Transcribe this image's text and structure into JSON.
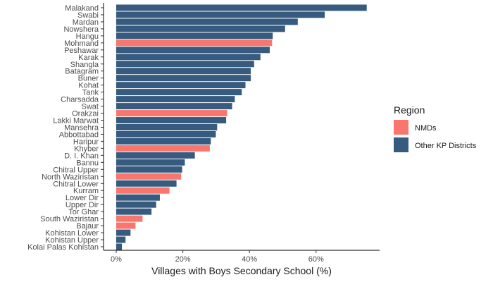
{
  "chart_data": {
    "type": "bar",
    "orientation": "horizontal",
    "xlabel": "Villages with Boys Secondary School (%)",
    "ylabel": "",
    "xlim": [
      0,
      78
    ],
    "xticks": [
      0,
      20,
      40,
      60
    ],
    "xtick_labels": [
      "0%",
      "20%",
      "40%",
      "60%"
    ],
    "grid": false,
    "legend": {
      "title": "Region",
      "placement": "right",
      "entries": [
        {
          "name": "NMDs",
          "color": "#F8766D"
        },
        {
          "name": "Other KP Districts",
          "color": "#375A7F"
        }
      ]
    },
    "bars": [
      {
        "category": "Malakand",
        "value": 75.2,
        "group": "Other KP Districts"
      },
      {
        "category": "Swabi",
        "value": 62.6,
        "group": "Other KP Districts"
      },
      {
        "category": "Mardan",
        "value": 54.5,
        "group": "Other KP Districts"
      },
      {
        "category": "Nowshera",
        "value": 50.7,
        "group": "Other KP Districts"
      },
      {
        "category": "Hangu",
        "value": 47.0,
        "group": "Other KP Districts"
      },
      {
        "category": "Mohmand",
        "value": 46.8,
        "group": "NMDs"
      },
      {
        "category": "Peshawar",
        "value": 46.1,
        "group": "Other KP Districts"
      },
      {
        "category": "Karak",
        "value": 43.3,
        "group": "Other KP Districts"
      },
      {
        "category": "Shangla",
        "value": 41.4,
        "group": "Other KP Districts"
      },
      {
        "category": "Batagram",
        "value": 40.4,
        "group": "Other KP Districts"
      },
      {
        "category": "Buner",
        "value": 40.4,
        "group": "Other KP Districts"
      },
      {
        "category": "Kohat",
        "value": 38.8,
        "group": "Other KP Districts"
      },
      {
        "category": "Tank",
        "value": 37.7,
        "group": "Other KP Districts"
      },
      {
        "category": "Charsadda",
        "value": 35.6,
        "group": "Other KP Districts"
      },
      {
        "category": "Swat",
        "value": 34.8,
        "group": "Other KP Districts"
      },
      {
        "category": "Orakzai",
        "value": 33.3,
        "group": "NMDs"
      },
      {
        "category": "Lakki Marwat",
        "value": 33.0,
        "group": "Other KP Districts"
      },
      {
        "category": "Mansehra",
        "value": 30.3,
        "group": "Other KP Districts"
      },
      {
        "category": "Abbottabad",
        "value": 29.9,
        "group": "Other KP Districts"
      },
      {
        "category": "Haripur",
        "value": 28.4,
        "group": "Other KP Districts"
      },
      {
        "category": "Khyber",
        "value": 28.1,
        "group": "NMDs"
      },
      {
        "category": "D. I. Khan",
        "value": 23.6,
        "group": "Other KP Districts"
      },
      {
        "category": "Bannu",
        "value": 20.6,
        "group": "Other KP Districts"
      },
      {
        "category": "Chitral Upper",
        "value": 19.8,
        "group": "Other KP Districts"
      },
      {
        "category": "North Waziristan",
        "value": 19.5,
        "group": "NMDs"
      },
      {
        "category": "Chitral Lower",
        "value": 18.1,
        "group": "Other KP Districts"
      },
      {
        "category": "Kurram",
        "value": 16.0,
        "group": "NMDs"
      },
      {
        "category": "Lower Dir",
        "value": 13.1,
        "group": "Other KP Districts"
      },
      {
        "category": "Upper Dir",
        "value": 12.0,
        "group": "Other KP Districts"
      },
      {
        "category": "Tor Ghar",
        "value": 10.6,
        "group": "Other KP Districts"
      },
      {
        "category": "South Waziristan",
        "value": 7.9,
        "group": "NMDs"
      },
      {
        "category": "Bajaur",
        "value": 5.8,
        "group": "NMDs"
      },
      {
        "category": "Kohistan Lower",
        "value": 4.3,
        "group": "Other KP Districts"
      },
      {
        "category": "Kohistan Upper",
        "value": 2.8,
        "group": "Other KP Districts"
      },
      {
        "category": "Kolai Palas Kohistan",
        "value": 1.7,
        "group": "Other KP Districts"
      }
    ]
  }
}
